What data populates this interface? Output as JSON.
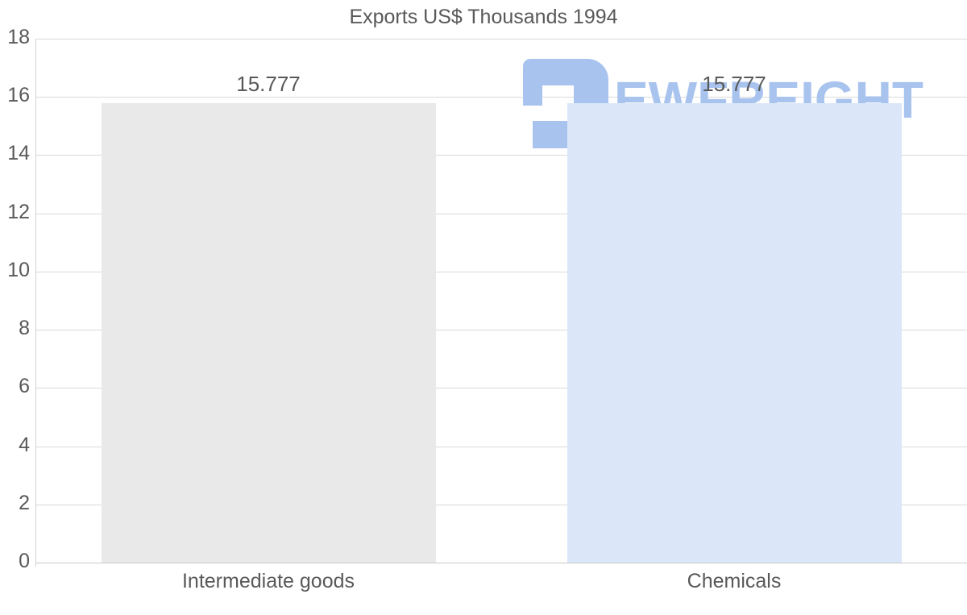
{
  "title": "Exports US$ Thousands 1994",
  "watermark": {
    "text": "EWFREIGHT",
    "icon": "freight-logo-mark",
    "color": "#a8c3ee"
  },
  "colors": {
    "text": "#595959",
    "gridline": "#d9d9d9",
    "axis_line": "#c9c9c9",
    "background": "#ffffff",
    "bar_intermediate_goods": "#e9e9e9",
    "bar_chemicals": "#dbe7f9"
  },
  "chart_data": {
    "type": "bar",
    "title": "Exports US$ Thousands 1994",
    "categories": [
      "Intermediate goods",
      "Chemicals"
    ],
    "values": [
      15.777,
      15.777
    ],
    "value_labels": [
      "15.777",
      "15.777"
    ],
    "series_colors": [
      "#e9e9e9",
      "#dbe7f9"
    ],
    "xlabel": "",
    "ylabel": "",
    "ylim": [
      0,
      18
    ],
    "yticks": [
      0,
      2,
      4,
      6,
      8,
      10,
      12,
      14,
      16,
      18
    ],
    "grid": true,
    "legend": false,
    "bar_value_labels_shown": true
  }
}
